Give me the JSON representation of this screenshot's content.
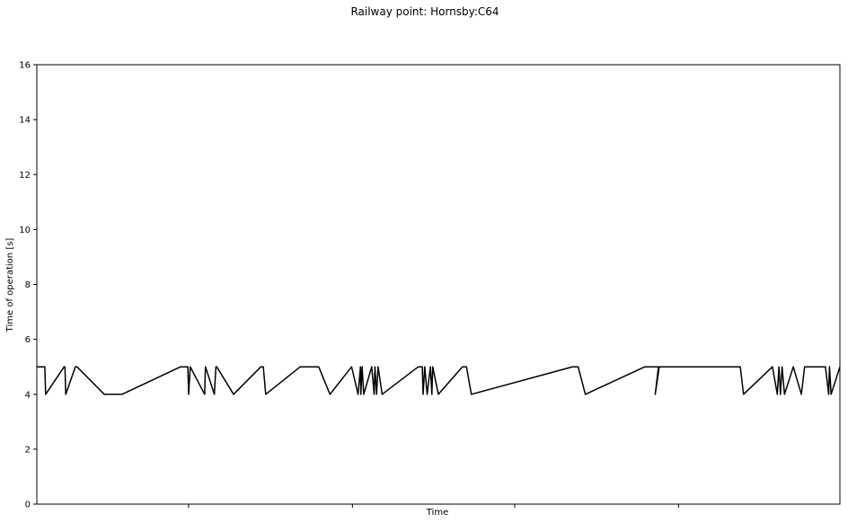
{
  "chart_data": {
    "type": "line",
    "title": "Railway point: Hornsby:C64",
    "xlabel": "Time",
    "ylabel": "Time of operation [s]",
    "ylim": [
      0,
      16
    ],
    "xlim": [
      0,
      100
    ],
    "y_ticks": [
      "0",
      "2",
      "4",
      "6",
      "8",
      "10",
      "12",
      "14",
      "16"
    ],
    "x_tick_positions": [
      18.9,
      39.3,
      59.5,
      79.9
    ],
    "grid": false,
    "legend": "none",
    "line_color": "#000000",
    "series": [
      {
        "x": [
          0,
          1.0,
          1.1,
          3.4,
          3.5,
          3.6,
          4.8,
          5.0,
          8.4,
          10.6,
          17.9,
          18.5,
          18.8,
          18.9,
          19.1,
          20.9,
          21.0,
          22.1,
          22.3,
          22.4,
          24.5,
          27.9,
          28.2,
          28.5,
          32.8,
          35.1,
          36.5,
          39.2,
          40.0,
          40.3,
          40.35,
          40.5,
          40.7,
          41.7,
          42.0,
          42.1,
          42.3,
          42.5,
          43.0,
          47.5,
          48.0,
          48.1,
          48.3,
          48.6,
          49.0,
          49.2,
          49.3,
          50.0,
          53.0,
          53.5,
          54.1,
          66.7,
          67.4,
          68.3,
          75.7,
          77.5,
          77.0,
          77.4,
          87.6,
          88.0,
          91.6,
          92.2,
          92.4,
          92.6,
          92.8,
          93.1,
          94.2,
          95.2,
          95.6,
          98.2,
          98.6,
          98.7,
          98.9,
          100
        ],
        "y": [
          5,
          5,
          4,
          5,
          5,
          4,
          5,
          5,
          4,
          4,
          5,
          5,
          5,
          4,
          5,
          4,
          5,
          4,
          5,
          5,
          4,
          5,
          5,
          4,
          5,
          5,
          4,
          5,
          4,
          5,
          4,
          5,
          4,
          5,
          4,
          5,
          4,
          5,
          4,
          5,
          5,
          4,
          5,
          4,
          5,
          4,
          5,
          4,
          5,
          5,
          4,
          5,
          5,
          4,
          5,
          5,
          4,
          5,
          5,
          4,
          5,
          4,
          5,
          4,
          5,
          4,
          5,
          4,
          5,
          5,
          4,
          5,
          4,
          5
        ]
      }
    ]
  }
}
